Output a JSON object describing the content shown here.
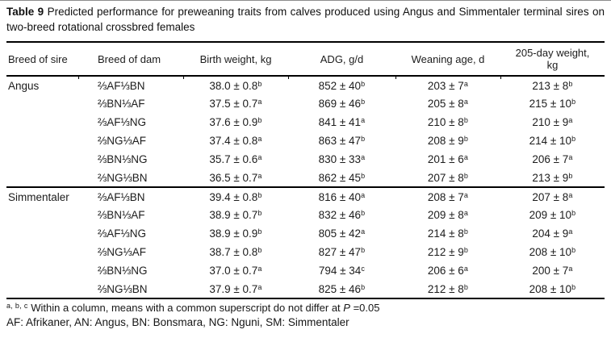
{
  "title": {
    "label": "Table 9",
    "text": " Predicted performance for preweaning traits from calves produced using Angus and Simmentaler terminal sires on two-breed rotational crossbred females"
  },
  "table": {
    "columns": [
      "Breed of sire",
      "Breed of dam",
      "Birth weight, kg",
      "ADG, g/d",
      "Weaning age, d",
      "205-day weight, kg"
    ],
    "sections": [
      {
        "sire": "Angus",
        "rows": [
          {
            "dam": "⅔AF⅓BN",
            "birth": {
              "v": "38.0 ± 0.8",
              "s": "b"
            },
            "adg": {
              "v": "852 ± 40",
              "s": "b"
            },
            "wean": {
              "v": "203 ± 7",
              "s": "a"
            },
            "w205": {
              "v": "213 ± 8",
              "s": "b"
            }
          },
          {
            "dam": "⅔BN⅓AF",
            "birth": {
              "v": "37.5 ± 0.7",
              "s": "a"
            },
            "adg": {
              "v": "869 ± 46",
              "s": "b"
            },
            "wean": {
              "v": "205 ± 8",
              "s": "a"
            },
            "w205": {
              "v": "215 ± 10",
              "s": "b"
            }
          },
          {
            "dam": "⅔AF⅓NG",
            "birth": {
              "v": "37.6 ± 0.9",
              "s": "b"
            },
            "adg": {
              "v": "841 ± 41",
              "s": "a"
            },
            "wean": {
              "v": "210 ± 8",
              "s": "b"
            },
            "w205": {
              "v": "210 ± 9",
              "s": "a"
            }
          },
          {
            "dam": "⅔NG⅓AF",
            "birth": {
              "v": "37.4 ± 0.8",
              "s": "a"
            },
            "adg": {
              "v": "863 ± 47",
              "s": "b"
            },
            "wean": {
              "v": "208 ± 9",
              "s": "b"
            },
            "w205": {
              "v": "214 ± 10",
              "s": "b"
            }
          },
          {
            "dam": "⅔BN⅓NG",
            "birth": {
              "v": "35.7 ± 0.6",
              "s": "a"
            },
            "adg": {
              "v": "830 ± 33",
              "s": "a"
            },
            "wean": {
              "v": "201 ± 6",
              "s": "a"
            },
            "w205": {
              "v": "206 ± 7",
              "s": "a"
            }
          },
          {
            "dam": "⅔NG⅓BN",
            "birth": {
              "v": "36.5 ± 0.7",
              "s": "a"
            },
            "adg": {
              "v": "862 ± 45",
              "s": "b"
            },
            "wean": {
              "v": "207 ± 8",
              "s": "b"
            },
            "w205": {
              "v": "213 ± 9",
              "s": "b"
            }
          }
        ]
      },
      {
        "sire": "Simmentaler",
        "rows": [
          {
            "dam": "⅔AF⅓BN",
            "birth": {
              "v": "39.4 ± 0.8",
              "s": "b"
            },
            "adg": {
              "v": "816 ± 40",
              "s": "a"
            },
            "wean": {
              "v": "208 ± 7",
              "s": "a"
            },
            "w205": {
              "v": "207 ± 8",
              "s": "a"
            }
          },
          {
            "dam": "⅔BN⅓AF",
            "birth": {
              "v": "38.9 ± 0.7",
              "s": "b"
            },
            "adg": {
              "v": "832 ± 46",
              "s": "b"
            },
            "wean": {
              "v": "209 ± 8",
              "s": "a"
            },
            "w205": {
              "v": "209 ± 10",
              "s": "b"
            }
          },
          {
            "dam": "⅔AF⅓NG",
            "birth": {
              "v": "38.9 ± 0.9",
              "s": "b"
            },
            "adg": {
              "v": "805 ± 42",
              "s": "a"
            },
            "wean": {
              "v": "214 ± 8",
              "s": "b"
            },
            "w205": {
              "v": "204 ± 9",
              "s": "a"
            }
          },
          {
            "dam": "⅔NG⅓AF",
            "birth": {
              "v": "38.7 ± 0.8",
              "s": "b"
            },
            "adg": {
              "v": "827 ± 47",
              "s": "b"
            },
            "wean": {
              "v": "212 ± 9",
              "s": "b"
            },
            "w205": {
              "v": "208 ± 10",
              "s": "b"
            }
          },
          {
            "dam": "⅔BN⅓NG",
            "birth": {
              "v": "37.0 ± 0.7",
              "s": "a"
            },
            "adg": {
              "v": "794 ± 34",
              "s": "c"
            },
            "wean": {
              "v": "206 ± 6",
              "s": "a"
            },
            "w205": {
              "v": "200 ± 7",
              "s": "a"
            }
          },
          {
            "dam": "⅔NG⅓BN",
            "birth": {
              "v": "37.9 ± 0.7",
              "s": "a"
            },
            "adg": {
              "v": "825 ± 46",
              "s": "b"
            },
            "wean": {
              "v": "212 ± 8",
              "s": "b"
            },
            "w205": {
              "v": "208 ± 10",
              "s": "b"
            }
          }
        ]
      }
    ]
  },
  "footnotes": {
    "significance": {
      "sup": "a, b, c",
      "pre": " Within a column, means with a common superscript do not differ at ",
      "p": "P",
      "post": " =0.05"
    },
    "abbreviations": "AF: Afrikaner, AN: Angus, BN: Bonsmara, NG: Nguni, SM: Simmentaler"
  }
}
